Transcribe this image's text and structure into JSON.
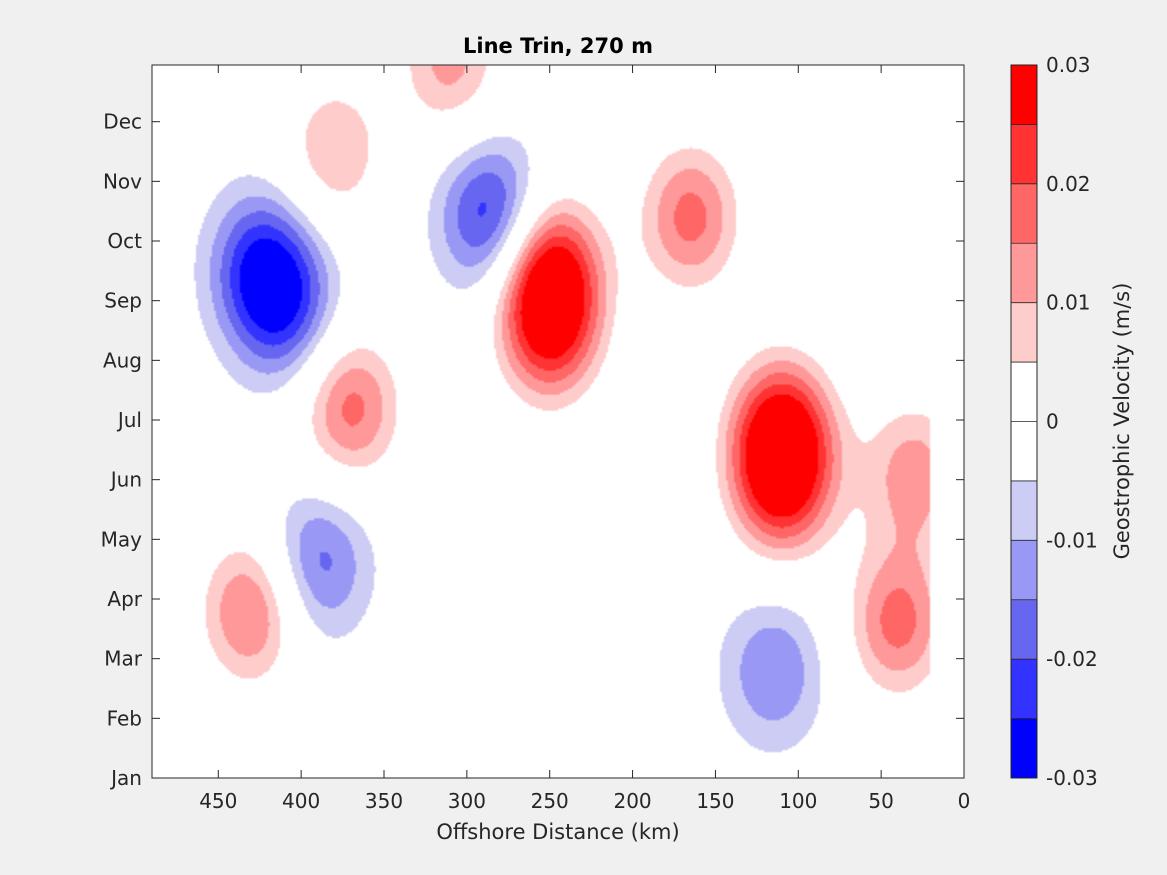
{
  "chart_data": {
    "type": "heatmap",
    "subtype": "filled-contour",
    "title": "Line Trin, 270 m",
    "xlabel": "Offshore Distance (km)",
    "xlim": [
      490,
      0
    ],
    "x_reversed": true,
    "x_ticks": [
      450,
      400,
      350,
      300,
      250,
      200,
      150,
      100,
      50,
      0
    ],
    "y_categories": [
      "Jan",
      "Feb",
      "Mar",
      "Apr",
      "May",
      "Jun",
      "Jul",
      "Aug",
      "Sep",
      "Oct",
      "Nov",
      "Dec"
    ],
    "y_ticks_shown": [
      "Jan",
      "Feb",
      "Mar",
      "Apr",
      "May",
      "Jun",
      "Jul",
      "Aug",
      "Sep",
      "Oct",
      "Nov",
      "Dec"
    ],
    "ylim_month_index": [
      0,
      11.95
    ],
    "data_x_range": [
      490,
      20
    ],
    "colorbar": {
      "label": "Geostrophic Velocity (m/s)",
      "ticks": [
        0.03,
        0.02,
        0.01,
        0,
        -0.01,
        -0.02,
        -0.03
      ],
      "levels": [
        -0.03,
        -0.025,
        -0.02,
        -0.015,
        -0.01,
        -0.005,
        0.005,
        0.01,
        0.015,
        0.02,
        0.025,
        0.03
      ],
      "colors": [
        "#0000ff",
        "#3333ff",
        "#6666f0",
        "#9999f5",
        "#ccccf5",
        "#ffffff",
        "#ffffff",
        "#ffcccc",
        "#ff9999",
        "#ff6666",
        "#ff3333",
        "#ff0000"
      ]
    },
    "features": [
      {
        "x": 425,
        "month": 8.6,
        "value": -0.02
      },
      {
        "x": 410,
        "month": 7.9,
        "value": -0.02
      },
      {
        "x": 285,
        "month": 9.4,
        "value": -0.025
      },
      {
        "x": 390,
        "month": 3.6,
        "value": -0.018
      },
      {
        "x": 115,
        "month": 1.8,
        "value": -0.015
      },
      {
        "x": 250,
        "month": 8.5,
        "value": 0.03
      },
      {
        "x": 250,
        "month": 7.5,
        "value": 0.025
      },
      {
        "x": 110,
        "month": 5.8,
        "value": 0.03
      },
      {
        "x": 110,
        "month": 4.9,
        "value": 0.025
      },
      {
        "x": 165,
        "month": 9.4,
        "value": 0.022
      },
      {
        "x": 370,
        "month": 6.2,
        "value": 0.022
      },
      {
        "x": 40,
        "month": 2.6,
        "value": 0.022
      },
      {
        "x": 430,
        "month": 2.8,
        "value": 0.022
      },
      {
        "x": 380,
        "month": 10.5,
        "value": 0.015
      },
      {
        "x": 310,
        "month": 12.0,
        "value": 0.017
      },
      {
        "x": 30,
        "month": 5.1,
        "value": 0.018
      }
    ]
  }
}
